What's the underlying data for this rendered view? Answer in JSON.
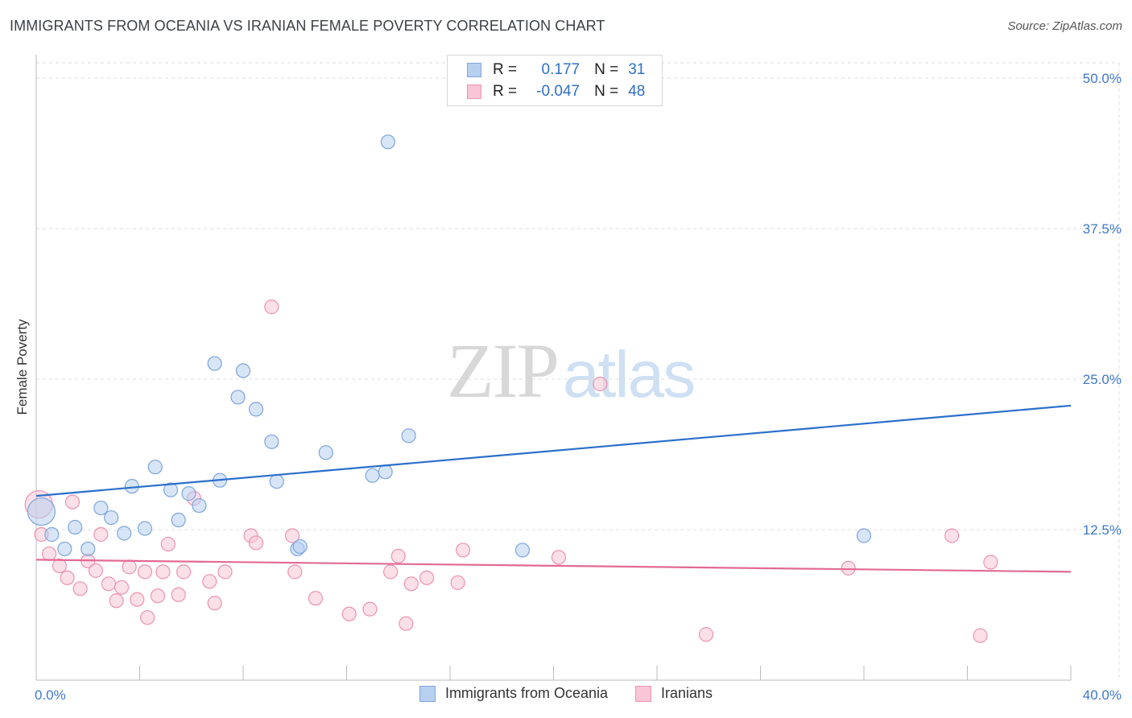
{
  "header": {
    "title": "IMMIGRANTS FROM OCEANIA VS IRANIAN FEMALE POVERTY CORRELATION CHART",
    "source": "Source: ZipAtlas.com"
  },
  "watermark": {
    "zip": "ZIP",
    "atlas": "atlas"
  },
  "legend": {
    "rows": [
      {
        "r_label": "R =",
        "r_value": " 0.177",
        "n_label": "N =",
        "n_value": "31"
      },
      {
        "r_label": "R =",
        "r_value": "-0.047",
        "n_label": "N =",
        "n_value": "48"
      }
    ]
  },
  "colors": {
    "blue_fill": "#b7d0f0",
    "blue_stroke": "#7ea6dc",
    "blue_line": "#2a6fcb",
    "pink_fill": "#f8c6d6",
    "pink_stroke": "#ec93b2",
    "pink_line": "#e26a94",
    "tick_text": "#3f78c8",
    "grid": "#dcdcdc"
  },
  "chart_data": {
    "type": "scatter",
    "xlabel": "",
    "ylabel": "Female Poverty",
    "xlim": [
      0,
      40
    ],
    "ylim": [
      0,
      52
    ],
    "x_tick_labels": [
      {
        "value": 0,
        "label": "0.0%"
      },
      {
        "value": 40,
        "label": "40.0%"
      }
    ],
    "y_tick_labels": [
      {
        "value": 12.5,
        "label": "12.5%"
      },
      {
        "value": 25,
        "label": "25.0%"
      },
      {
        "value": 37.5,
        "label": "37.5%"
      },
      {
        "value": 50,
        "label": "50.0%"
      }
    ],
    "grid": true,
    "legend_position": "top-center",
    "series": [
      {
        "name": "Immigrants from Oceania",
        "trend": {
          "x": [
            0,
            40
          ],
          "y": [
            15.3,
            22.8
          ]
        },
        "points": [
          [
            0.2,
            14.0
          ],
          [
            0.6,
            12.1
          ],
          [
            1.1,
            10.9
          ],
          [
            1.5,
            12.7
          ],
          [
            2.0,
            10.9
          ],
          [
            2.5,
            14.3
          ],
          [
            2.9,
            13.5
          ],
          [
            3.4,
            12.2
          ],
          [
            3.7,
            16.1
          ],
          [
            4.2,
            12.6
          ],
          [
            4.6,
            17.7
          ],
          [
            5.2,
            15.8
          ],
          [
            5.5,
            13.3
          ],
          [
            5.9,
            15.5
          ],
          [
            6.3,
            14.5
          ],
          [
            6.9,
            26.3
          ],
          [
            7.1,
            16.6
          ],
          [
            7.8,
            23.5
          ],
          [
            8.0,
            25.7
          ],
          [
            8.5,
            22.5
          ],
          [
            9.1,
            19.8
          ],
          [
            9.3,
            16.5
          ],
          [
            10.1,
            10.9
          ],
          [
            10.2,
            11.1
          ],
          [
            11.2,
            18.9
          ],
          [
            13.0,
            17.0
          ],
          [
            13.5,
            17.3
          ],
          [
            13.6,
            44.7
          ],
          [
            14.4,
            20.3
          ],
          [
            18.8,
            10.8
          ],
          [
            32.0,
            12.0
          ]
        ]
      },
      {
        "name": "Iranians",
        "trend": {
          "x": [
            0,
            40
          ],
          "y": [
            10.0,
            9.0
          ]
        },
        "points": [
          [
            0.1,
            14.6
          ],
          [
            0.2,
            12.1
          ],
          [
            0.5,
            10.5
          ],
          [
            0.9,
            9.5
          ],
          [
            1.2,
            8.5
          ],
          [
            1.4,
            14.8
          ],
          [
            1.7,
            7.6
          ],
          [
            2.0,
            9.9
          ],
          [
            2.3,
            9.1
          ],
          [
            2.5,
            12.1
          ],
          [
            2.8,
            8.0
          ],
          [
            3.1,
            6.6
          ],
          [
            3.3,
            7.7
          ],
          [
            3.6,
            9.4
          ],
          [
            3.9,
            6.7
          ],
          [
            4.2,
            9.0
          ],
          [
            4.3,
            5.2
          ],
          [
            4.7,
            7.0
          ],
          [
            4.9,
            9.0
          ],
          [
            5.1,
            11.3
          ],
          [
            5.5,
            7.1
          ],
          [
            5.7,
            9.0
          ],
          [
            6.1,
            15.1
          ],
          [
            6.7,
            8.2
          ],
          [
            6.9,
            6.4
          ],
          [
            7.3,
            9.0
          ],
          [
            8.3,
            12.0
          ],
          [
            8.5,
            11.4
          ],
          [
            9.1,
            31.0
          ],
          [
            9.9,
            12.0
          ],
          [
            10.0,
            9.0
          ],
          [
            10.8,
            6.8
          ],
          [
            12.1,
            5.5
          ],
          [
            12.9,
            5.9
          ],
          [
            13.7,
            9.0
          ],
          [
            14.0,
            10.3
          ],
          [
            14.3,
            4.7
          ],
          [
            14.5,
            8.0
          ],
          [
            15.1,
            8.5
          ],
          [
            16.3,
            8.1
          ],
          [
            16.5,
            10.8
          ],
          [
            20.2,
            10.2
          ],
          [
            21.8,
            24.6
          ],
          [
            25.9,
            3.8
          ],
          [
            31.4,
            9.3
          ],
          [
            35.4,
            12.0
          ],
          [
            36.5,
            3.7
          ],
          [
            36.9,
            9.8
          ]
        ]
      }
    ]
  }
}
